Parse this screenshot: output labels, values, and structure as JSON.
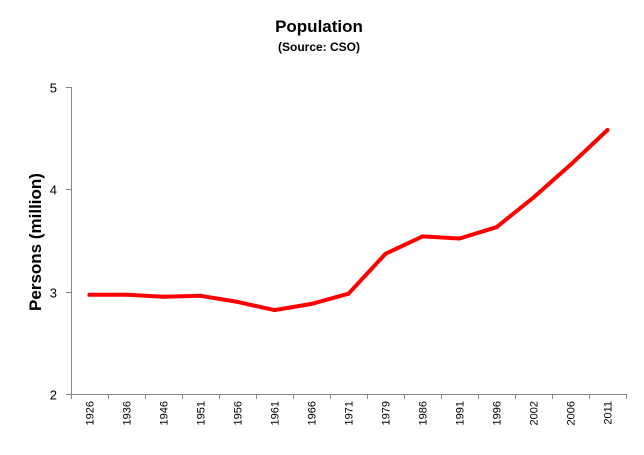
{
  "chart_data": {
    "type": "line",
    "title": "Population",
    "subtitle": "(Source: CSO)",
    "xlabel": "",
    "ylabel": "Persons (million)",
    "ylim": [
      2,
      5
    ],
    "yticks": [
      "2",
      "3",
      "4",
      "5"
    ],
    "grid": false,
    "legend": "none",
    "categories": [
      "1926",
      "1936",
      "1946",
      "1951",
      "1956",
      "1961",
      "1966",
      "1971",
      "1979",
      "1986",
      "1991",
      "1996",
      "2002",
      "2006",
      "2011"
    ],
    "series": [
      {
        "name": "Population",
        "color": "#ff0000",
        "values": [
          2.97,
          2.97,
          2.95,
          2.96,
          2.9,
          2.82,
          2.88,
          2.98,
          3.37,
          3.54,
          3.52,
          3.63,
          3.92,
          4.24,
          4.58
        ]
      }
    ]
  }
}
